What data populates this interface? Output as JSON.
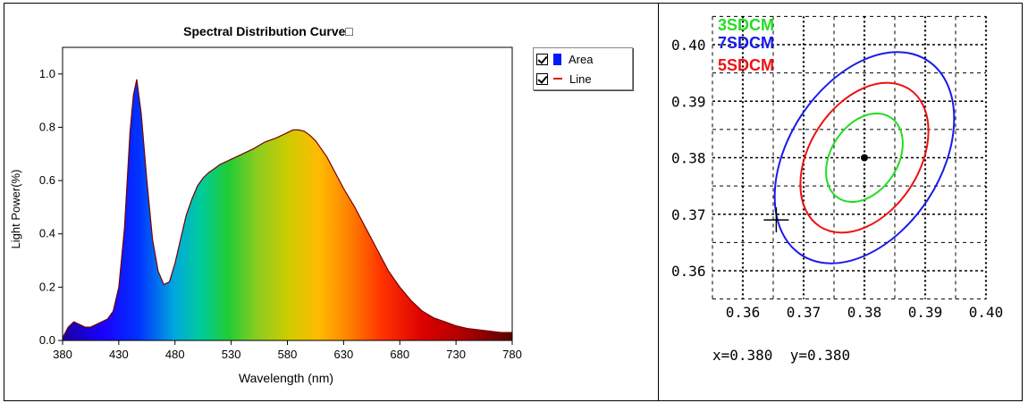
{
  "spectral_panel": {
    "title": "Spectral Distribution Curve□",
    "xlabel": "Wavelength  (nm)",
    "ylabel": "Light Power(%)",
    "legend": [
      {
        "label": "Area",
        "checked": true,
        "color": "#0018ff"
      },
      {
        "label": "Line",
        "checked": true,
        "color": "#dd1111"
      }
    ]
  },
  "cie_panel": {
    "zones": [
      {
        "label": "3SDCM",
        "color": "#22dd22"
      },
      {
        "label": "7SDCM",
        "color": "#1a1aee"
      },
      {
        "label": "5SDCM",
        "color": "#ee1111"
      }
    ],
    "readout": "x=0.380  y=0.380"
  },
  "chart_data": [
    {
      "type": "area",
      "title": "Spectral Distribution Curve□",
      "xlabel": "Wavelength  (nm)",
      "ylabel": "Light Power(%)",
      "xlim": [
        380,
        780
      ],
      "ylim": [
        0,
        1.1
      ],
      "xticks": [
        380,
        430,
        480,
        530,
        580,
        630,
        680,
        730,
        780
      ],
      "yticks": [
        "0.0",
        "0.2",
        "0.4",
        "0.6",
        "0.8",
        "1.0"
      ],
      "legend_position": "outside-right-top",
      "series": [
        {
          "name": "Area",
          "x": [
            380,
            385,
            390,
            395,
            400,
            405,
            410,
            415,
            420,
            425,
            430,
            435,
            440,
            443,
            446,
            450,
            455,
            460,
            465,
            470,
            475,
            480,
            485,
            490,
            495,
            500,
            505,
            510,
            515,
            520,
            525,
            530,
            540,
            550,
            560,
            570,
            580,
            585,
            590,
            595,
            600,
            605,
            610,
            615,
            620,
            625,
            630,
            640,
            650,
            660,
            670,
            680,
            690,
            700,
            710,
            720,
            730,
            740,
            750,
            760,
            770,
            780
          ],
          "values": [
            0.01,
            0.05,
            0.07,
            0.06,
            0.05,
            0.05,
            0.06,
            0.07,
            0.08,
            0.11,
            0.2,
            0.42,
            0.78,
            0.92,
            0.98,
            0.85,
            0.6,
            0.38,
            0.26,
            0.21,
            0.22,
            0.29,
            0.38,
            0.47,
            0.53,
            0.58,
            0.61,
            0.63,
            0.645,
            0.66,
            0.67,
            0.68,
            0.7,
            0.72,
            0.745,
            0.76,
            0.78,
            0.79,
            0.79,
            0.785,
            0.77,
            0.75,
            0.72,
            0.69,
            0.65,
            0.61,
            0.57,
            0.5,
            0.42,
            0.34,
            0.26,
            0.2,
            0.15,
            0.11,
            0.085,
            0.07,
            0.055,
            0.045,
            0.04,
            0.035,
            0.03,
            0.03
          ]
        }
      ]
    },
    {
      "type": "scatter",
      "xlim": [
        0.355,
        0.4
      ],
      "ylim": [
        0.355,
        0.405
      ],
      "xticks": [
        "0.36",
        "0.37",
        "0.38",
        "0.39",
        "0.40"
      ],
      "yticks": [
        "0.36",
        "0.37",
        "0.38",
        "0.39",
        "0.40"
      ],
      "grid": true,
      "center": [
        0.38,
        0.38
      ],
      "measured_point": [
        0.3655,
        0.369
      ],
      "ellipses": [
        {
          "name": "3SDCM",
          "color": "#22dd22",
          "rx": 0.0055,
          "ry": 0.0085,
          "angle": 33
        },
        {
          "name": "5SDCM",
          "color": "#ee1111",
          "rx": 0.009,
          "ry": 0.0145,
          "angle": 33
        },
        {
          "name": "7SDCM",
          "color": "#1a1aee",
          "rx": 0.0125,
          "ry": 0.0205,
          "angle": 33
        }
      ]
    }
  ]
}
